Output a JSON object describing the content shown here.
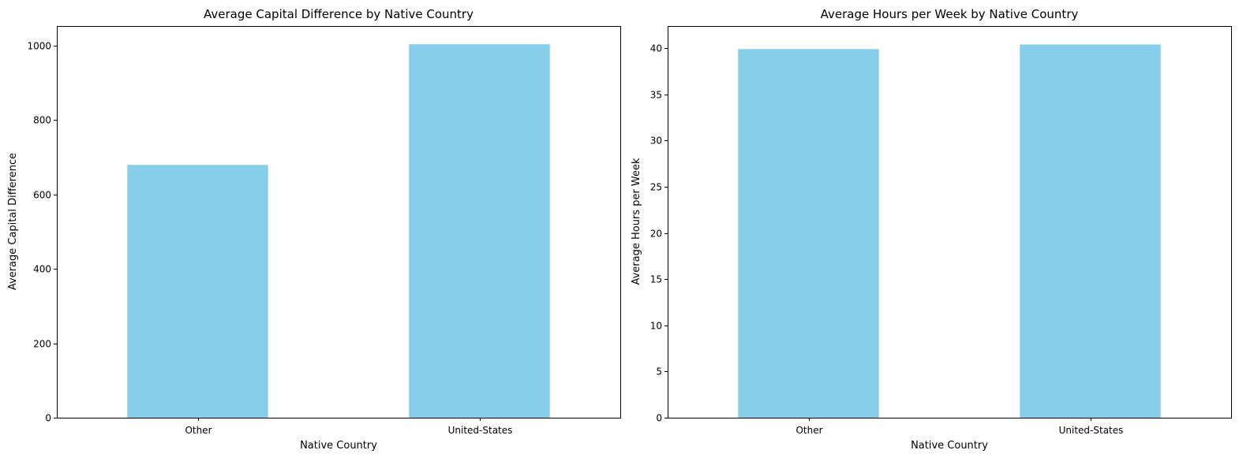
{
  "figure": {
    "background": "#ffffff",
    "bar_color": "#87ceeb",
    "axis_color": "#000000"
  },
  "chart_data": [
    {
      "type": "bar",
      "title": "Average Capital Difference by Native Country",
      "xlabel": "Native Country",
      "ylabel": "Average Capital Difference",
      "categories": [
        "Other",
        "United-States"
      ],
      "values": [
        679,
        1003
      ],
      "ylim": [
        0,
        1052
      ],
      "yticks": [
        0,
        200,
        400,
        600,
        800,
        1000
      ],
      "ytick_labels": [
        "0",
        "200",
        "400",
        "600",
        "800",
        "1000"
      ],
      "grid": false,
      "legend": "none"
    },
    {
      "type": "bar",
      "title": "Average Hours per Week by Native Country",
      "xlabel": "Native Country",
      "ylabel": "Average Hours per Week",
      "categories": [
        "Other",
        "United-States"
      ],
      "values": [
        39.9,
        40.4
      ],
      "ylim": [
        0,
        42.4
      ],
      "yticks": [
        0,
        5,
        10,
        15,
        20,
        25,
        30,
        35,
        40
      ],
      "ytick_labels": [
        "0",
        "5",
        "10",
        "15",
        "20",
        "25",
        "30",
        "35",
        "40"
      ],
      "grid": false,
      "legend": "none"
    }
  ]
}
